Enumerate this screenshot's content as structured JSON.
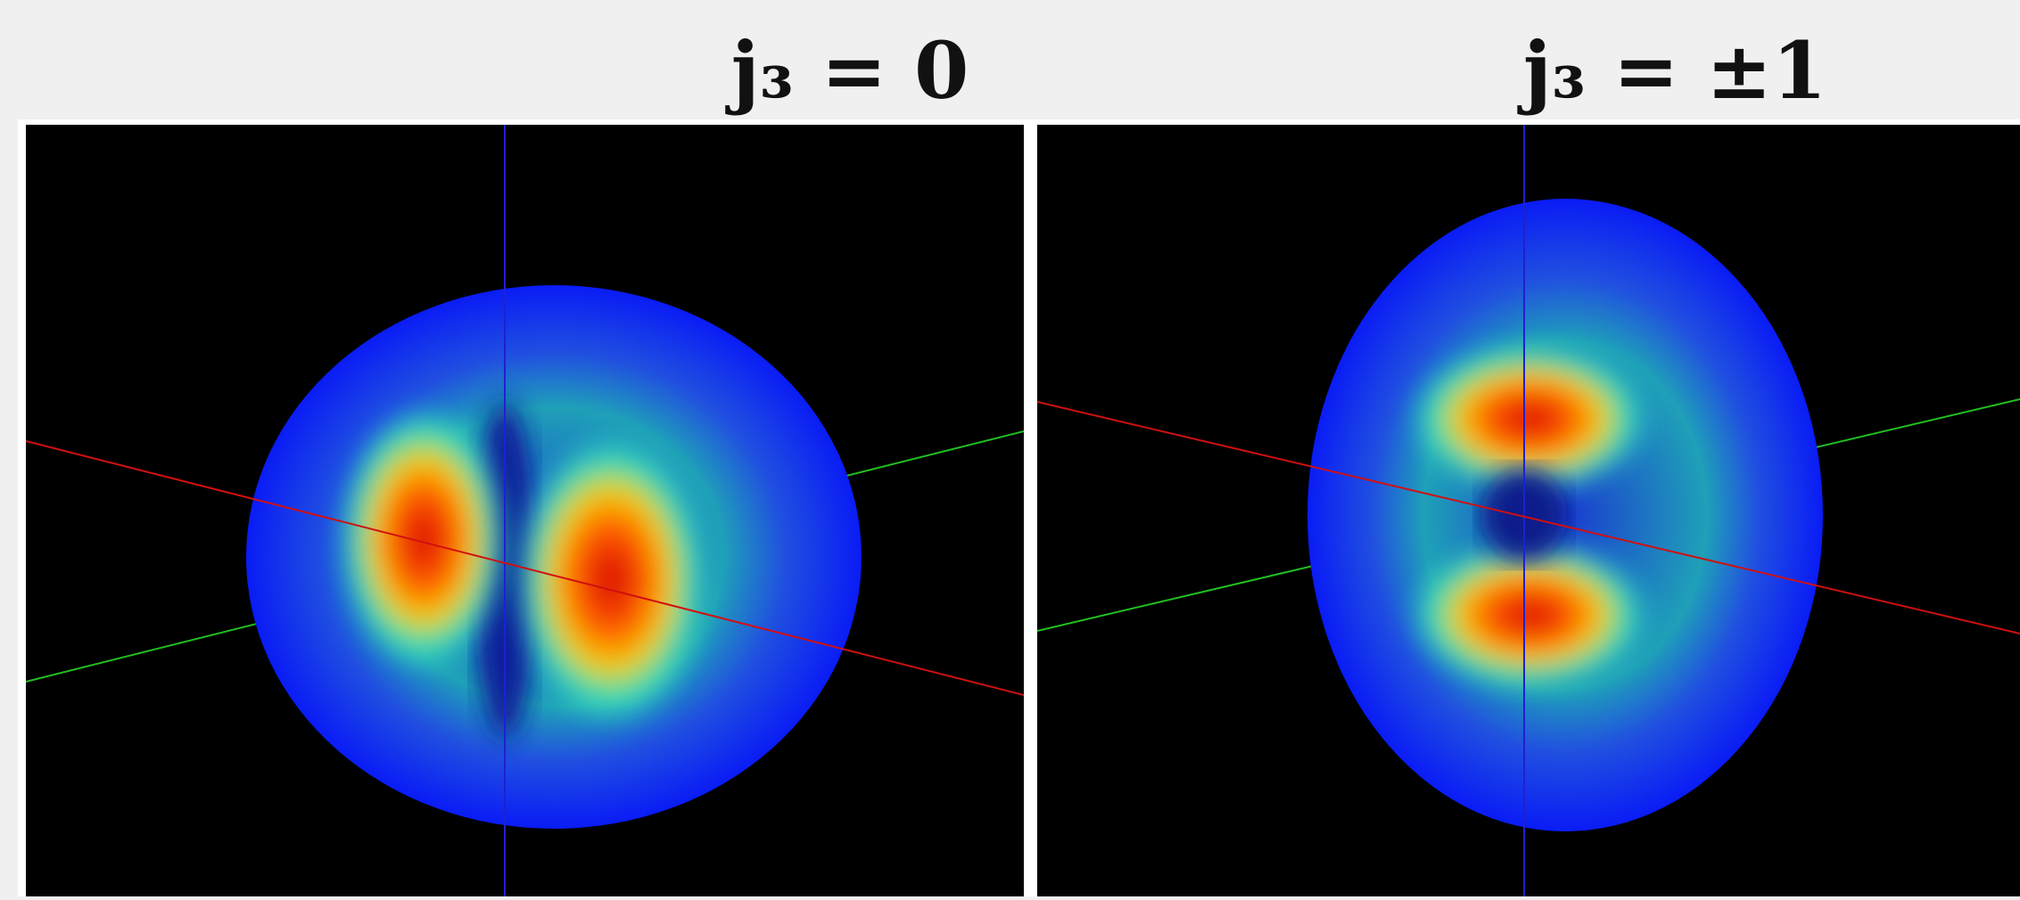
{
  "panels": [
    {
      "title": "j₃ = 0"
    },
    {
      "title": "j₃ = ±1"
    }
  ]
}
